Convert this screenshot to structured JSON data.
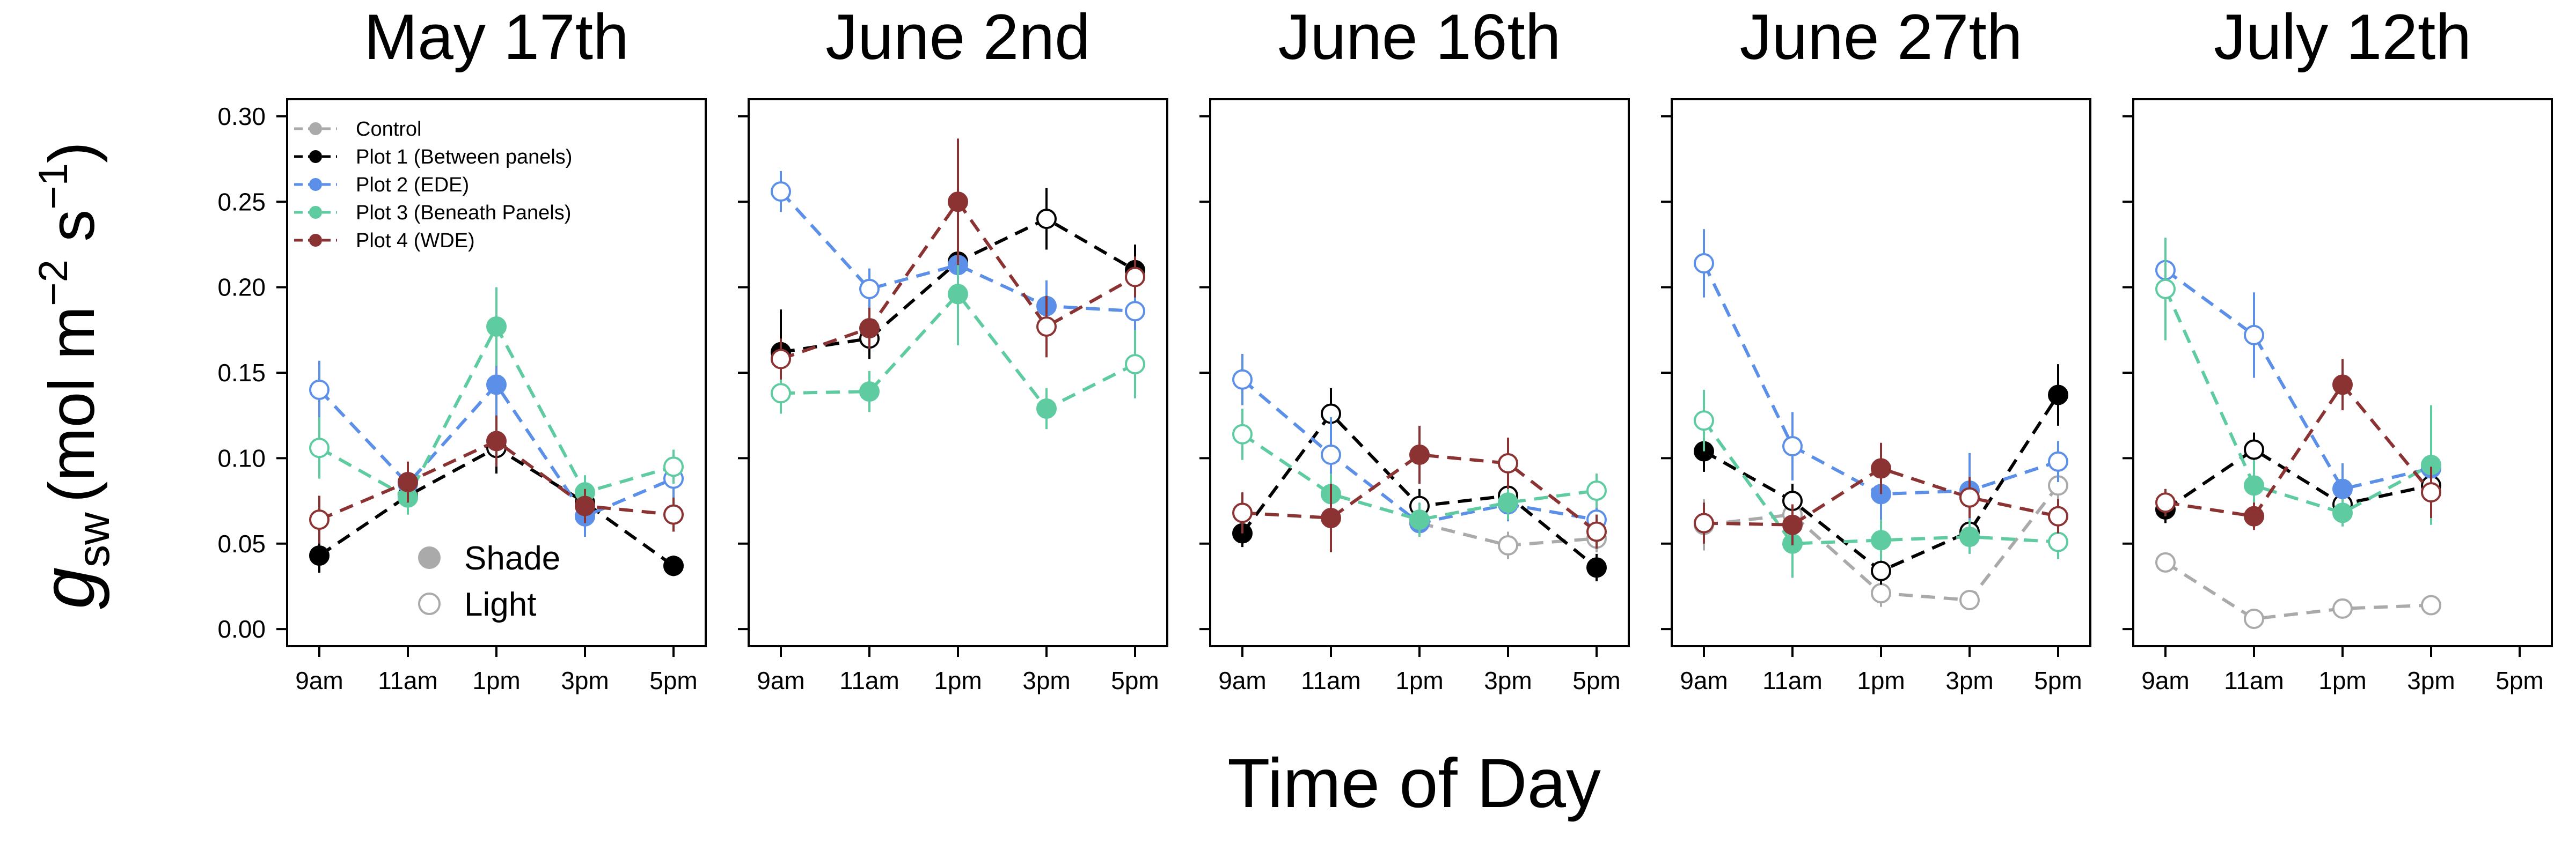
{
  "chart_data": {
    "type": "line",
    "xlabel": "Time of Day",
    "ylabel": {
      "symbol": "g",
      "subscript": "sw",
      "units_prefix": "(mol m",
      "exp1": "−2",
      "units_mid": " s",
      "exp2": "−1",
      "units_suffix": ")"
    },
    "x_ticks": [
      "9am",
      "11am",
      "1pm",
      "3pm",
      "5pm"
    ],
    "y_ticks": [
      "0.00",
      "0.05",
      "0.10",
      "0.15",
      "0.20",
      "0.25",
      "0.30"
    ],
    "ylim": [
      -0.01,
      0.31
    ],
    "series_styles": [
      {
        "name": "Control",
        "color": "#aaaaaa"
      },
      {
        "name": "Plot 1 (Between panels)",
        "color": "#000000"
      },
      {
        "name": "Plot 2 (EDE)",
        "color": "#5b8fe8"
      },
      {
        "name": "Plot 3 (Beneath Panels)",
        "color": "#5ecba1"
      },
      {
        "name": "Plot 4 (WDE)",
        "color": "#8b3333"
      }
    ],
    "marker_legend": {
      "shade": "Shade",
      "light": "Light"
    },
    "panels": [
      {
        "title": "May 17th",
        "series": [
          {
            "name": "Plot 1 (Between panels)",
            "y": [
              0.043,
              0.078,
              0.106,
              0.074,
              0.037
            ],
            "err": [
              0.01,
              0.008,
              0.015,
              0.008,
              0.006
            ],
            "filled": [
              true,
              true,
              false,
              true,
              true
            ]
          },
          {
            "name": "Plot 2 (EDE)",
            "y": [
              0.14,
              0.085,
              0.143,
              0.066,
              0.088
            ],
            "err": [
              0.017,
              0.01,
              0.025,
              0.012,
              0.012
            ],
            "filled": [
              false,
              true,
              true,
              true,
              false
            ]
          },
          {
            "name": "Plot 3 (Beneath Panels)",
            "y": [
              0.106,
              0.077,
              0.177,
              0.08,
              0.095
            ],
            "err": [
              0.018,
              0.01,
              0.023,
              0.01,
              0.01
            ],
            "filled": [
              false,
              true,
              true,
              true,
              false
            ]
          },
          {
            "name": "Plot 4 (WDE)",
            "y": [
              0.064,
              0.086,
              0.11,
              0.072,
              0.067
            ],
            "err": [
              0.014,
              0.012,
              0.015,
              0.01,
              0.01
            ],
            "filled": [
              false,
              true,
              true,
              true,
              false
            ]
          }
        ]
      },
      {
        "title": "June 2nd",
        "series": [
          {
            "name": "Plot 1 (Between panels)",
            "y": [
              0.162,
              0.17,
              0.215,
              0.24,
              0.21
            ],
            "err": [
              0.025,
              0.012,
              0.018,
              0.018,
              0.015
            ],
            "filled": [
              true,
              false,
              true,
              false,
              true
            ]
          },
          {
            "name": "Plot 2 (EDE)",
            "y": [
              0.256,
              0.199,
              0.213,
              0.189,
              0.186
            ],
            "err": [
              0.012,
              0.012,
              0.015,
              0.015,
              0.012
            ],
            "filled": [
              false,
              false,
              true,
              true,
              false
            ]
          },
          {
            "name": "Plot 3 (Beneath Panels)",
            "y": [
              0.138,
              0.139,
              0.196,
              0.129,
              0.155
            ],
            "err": [
              0.012,
              0.012,
              0.03,
              0.012,
              0.02
            ],
            "filled": [
              false,
              true,
              true,
              true,
              false
            ]
          },
          {
            "name": "Plot 4 (WDE)",
            "y": [
              0.158,
              0.176,
              0.25,
              0.177,
              0.206
            ],
            "err": [
              0.012,
              0.012,
              0.037,
              0.018,
              0.012
            ],
            "filled": [
              false,
              true,
              true,
              false,
              false
            ]
          }
        ]
      },
      {
        "title": "June 16th",
        "series": [
          {
            "name": "Control",
            "y": [
              null,
              null,
              0.062,
              0.049,
              0.053
            ],
            "err": [
              0,
              0,
              0.008,
              0.008,
              0.008
            ],
            "filled": [
              false,
              false,
              false,
              false,
              false
            ]
          },
          {
            "name": "Plot 1 (Between panels)",
            "y": [
              0.056,
              0.126,
              0.072,
              0.078,
              0.036
            ],
            "err": [
              0.008,
              0.015,
              0.01,
              0.01,
              0.008
            ],
            "filled": [
              true,
              false,
              false,
              false,
              true
            ]
          },
          {
            "name": "Plot 2 (EDE)",
            "y": [
              0.146,
              0.102,
              0.062,
              0.073,
              0.064
            ],
            "err": [
              0.015,
              0.022,
              0.008,
              0.01,
              0.008
            ],
            "filled": [
              false,
              false,
              true,
              true,
              false
            ]
          },
          {
            "name": "Plot 3 (Beneath Panels)",
            "y": [
              0.114,
              0.079,
              0.064,
              0.074,
              0.081
            ],
            "err": [
              0.015,
              0.012,
              0.01,
              0.01,
              0.01
            ],
            "filled": [
              false,
              true,
              true,
              true,
              false
            ]
          },
          {
            "name": "Plot 4 (WDE)",
            "y": [
              0.068,
              0.065,
              0.102,
              0.097,
              0.057
            ],
            "err": [
              0.012,
              0.02,
              0.017,
              0.015,
              0.01
            ],
            "filled": [
              false,
              true,
              true,
              false,
              false
            ]
          }
        ]
      },
      {
        "title": "June 27th",
        "series": [
          {
            "name": "Control",
            "y": [
              0.061,
              0.067,
              0.021,
              0.017,
              0.084
            ],
            "err": [
              0.015,
              0.012,
              0.008,
              0.005,
              0.012
            ],
            "filled": [
              false,
              false,
              false,
              false,
              false
            ]
          },
          {
            "name": "Plot 1 (Between panels)",
            "y": [
              0.104,
              0.075,
              0.034,
              0.057,
              0.137
            ],
            "err": [
              0.012,
              0.01,
              0.008,
              0.01,
              0.018
            ],
            "filled": [
              true,
              false,
              false,
              false,
              true
            ]
          },
          {
            "name": "Plot 2 (EDE)",
            "y": [
              0.214,
              0.107,
              0.079,
              0.081,
              0.098
            ],
            "err": [
              0.02,
              0.02,
              0.015,
              0.022,
              0.012
            ],
            "filled": [
              false,
              false,
              true,
              true,
              false
            ]
          },
          {
            "name": "Plot 3 (Beneath Panels)",
            "y": [
              0.122,
              0.05,
              0.052,
              0.054,
              0.051
            ],
            "err": [
              0.018,
              0.02,
              0.012,
              0.01,
              0.01
            ],
            "filled": [
              false,
              true,
              true,
              true,
              false
            ]
          },
          {
            "name": "Plot 4 (WDE)",
            "y": [
              0.062,
              0.061,
              0.094,
              0.077,
              0.066
            ],
            "err": [
              0.012,
              0.012,
              0.015,
              0.012,
              0.01
            ],
            "filled": [
              false,
              true,
              true,
              false,
              false
            ]
          }
        ]
      },
      {
        "title": "July 12th",
        "series": [
          {
            "name": "Control",
            "y": [
              0.039,
              0.006,
              0.012,
              0.014,
              null
            ],
            "err": [
              0.005,
              0.004,
              0.005,
              0.004,
              0
            ],
            "filled": [
              false,
              false,
              false,
              false,
              false
            ]
          },
          {
            "name": "Plot 1 (Between panels)",
            "y": [
              0.07,
              0.105,
              0.073,
              0.084,
              null
            ],
            "err": [
              0.008,
              0.01,
              0.008,
              0.01,
              0
            ],
            "filled": [
              true,
              false,
              false,
              false,
              false
            ]
          },
          {
            "name": "Plot 2 (EDE)",
            "y": [
              0.21,
              0.172,
              0.082,
              0.094,
              null
            ],
            "err": [
              0.018,
              0.025,
              0.015,
              0.012,
              0
            ],
            "filled": [
              false,
              false,
              true,
              true,
              false
            ]
          },
          {
            "name": "Plot 3 (Beneath Panels)",
            "y": [
              0.199,
              0.084,
              0.068,
              0.096,
              null
            ],
            "err": [
              0.03,
              0.015,
              0.008,
              0.035,
              0
            ],
            "filled": [
              false,
              true,
              true,
              true,
              false
            ]
          },
          {
            "name": "Plot 4 (WDE)",
            "y": [
              0.074,
              0.066,
              0.143,
              0.08,
              null
            ],
            "err": [
              0.008,
              0.008,
              0.015,
              0.015,
              0
            ],
            "filled": [
              false,
              true,
              true,
              false,
              false
            ]
          }
        ]
      }
    ]
  }
}
